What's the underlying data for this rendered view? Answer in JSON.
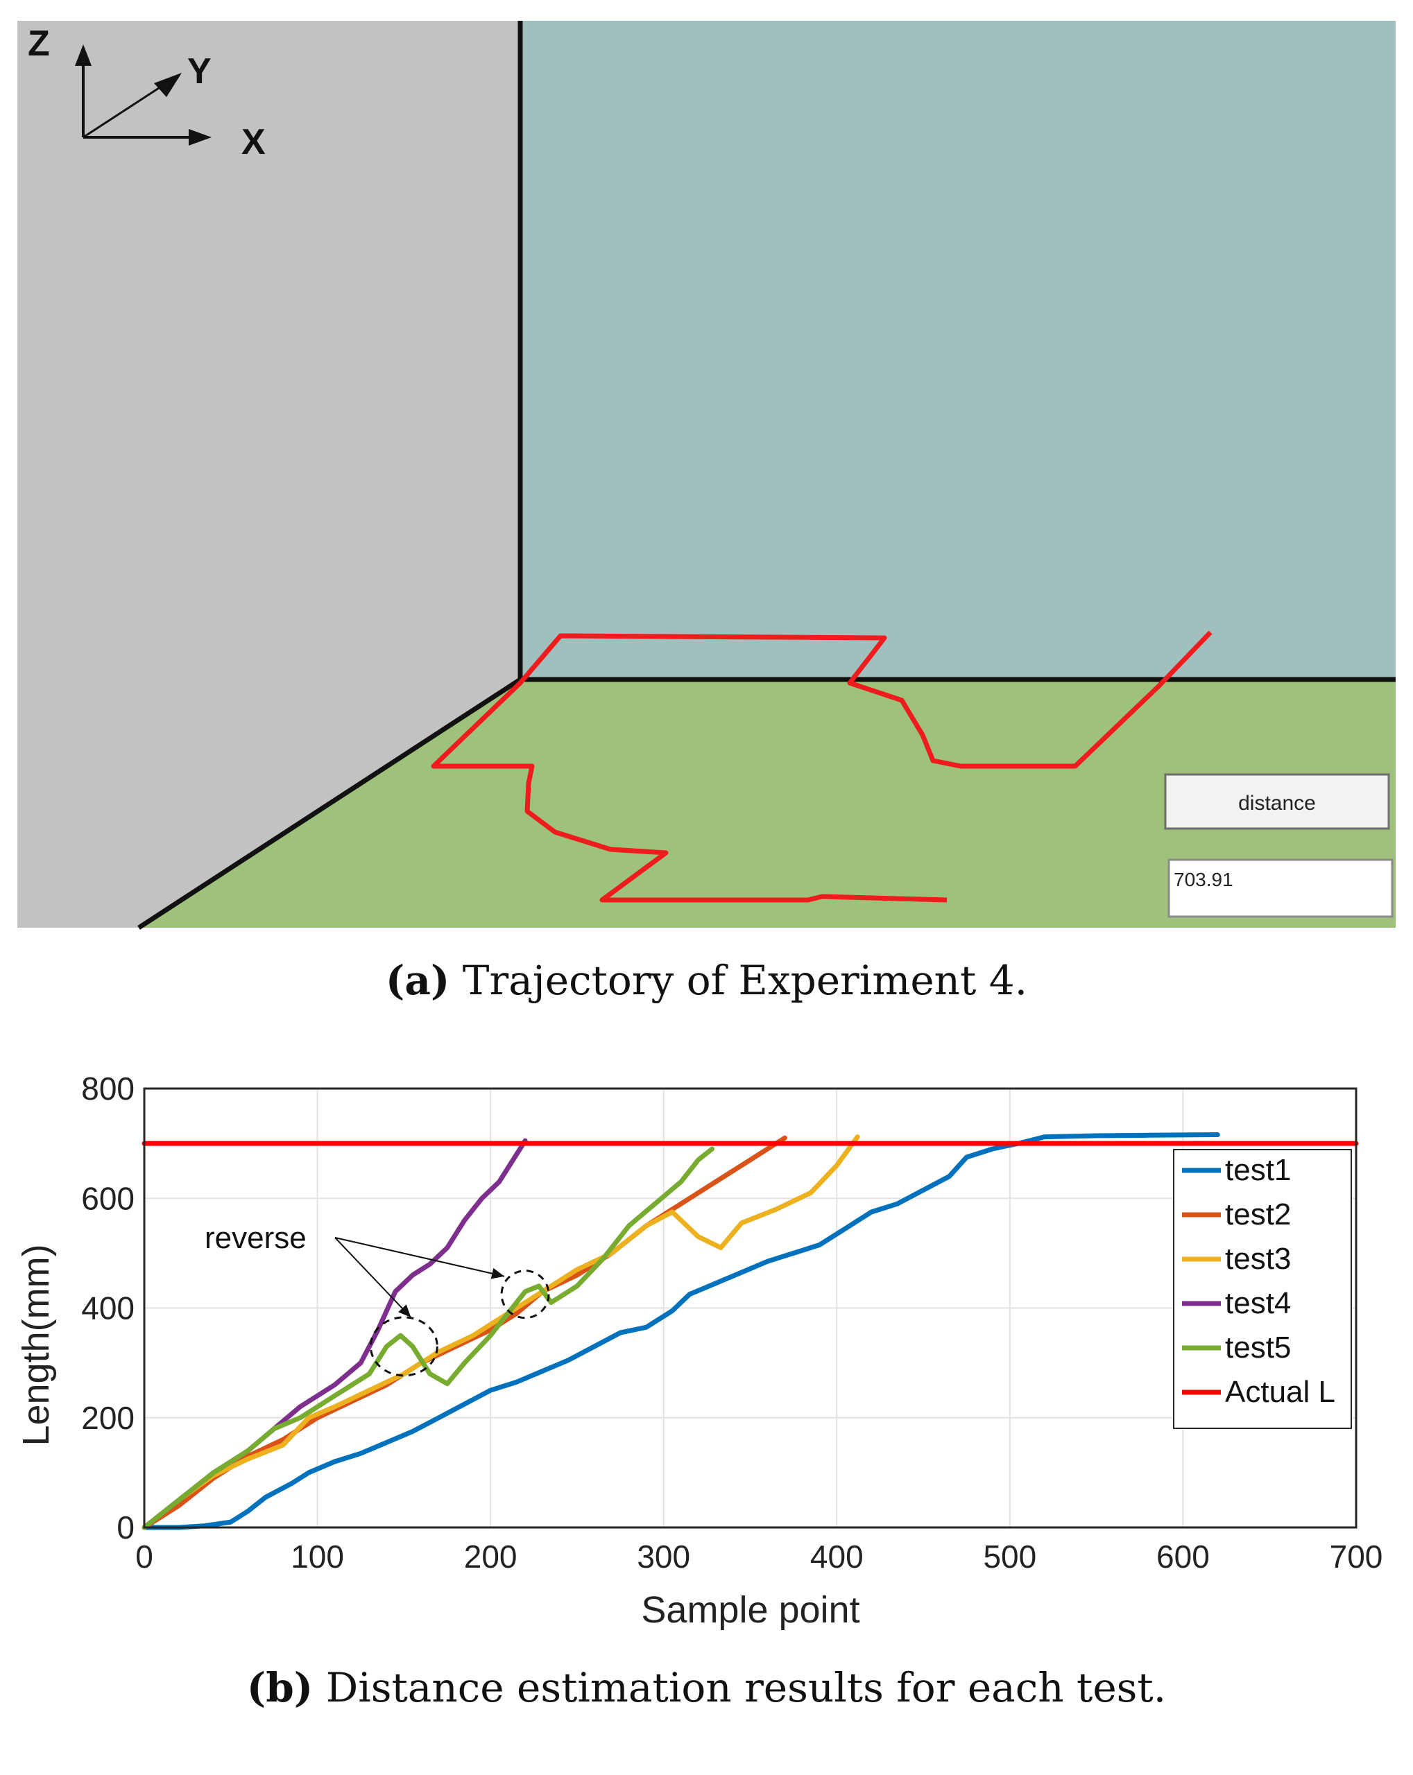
{
  "figure_a": {
    "axis_labels": {
      "z": "Z",
      "y": "Y",
      "x": "X"
    },
    "button_label": "distance",
    "distance_value": "703.91",
    "colors": {
      "left_wall": "#c2c2c2",
      "back_wall": "#a0bfbd",
      "floor": "#9ec27c",
      "trajectory": "#ee1c1c",
      "edges": "#111111"
    },
    "caption_tag": "(a)",
    "caption_text": "Trajectory of Experiment 4."
  },
  "figure_b": {
    "annotation": "reverse",
    "caption_tag": "(b)",
    "caption_text": "Distance estimation results for each test."
  },
  "chart_data": {
    "type": "line",
    "title": "",
    "xlabel": "Sample point",
    "ylabel": "Length(mm)",
    "xlim": [
      0,
      700
    ],
    "ylim": [
      0,
      800
    ],
    "xticks": [
      0,
      100,
      200,
      300,
      400,
      500,
      600,
      700
    ],
    "yticks": [
      0,
      200,
      400,
      600,
      800
    ],
    "grid": true,
    "legend_position": "right",
    "series": [
      {
        "name": "test1",
        "color": "#0072BD",
        "x": [
          0,
          20,
          35,
          50,
          60,
          70,
          85,
          95,
          110,
          125,
          140,
          155,
          170,
          185,
          200,
          215,
          230,
          245,
          260,
          275,
          290,
          305,
          315,
          330,
          345,
          360,
          375,
          390,
          405,
          420,
          435,
          450,
          465,
          475,
          490,
          505,
          520,
          550,
          580,
          620
        ],
        "y": [
          0,
          0,
          3,
          10,
          30,
          55,
          80,
          100,
          120,
          135,
          155,
          175,
          200,
          225,
          250,
          265,
          285,
          305,
          330,
          355,
          365,
          395,
          425,
          445,
          465,
          485,
          500,
          515,
          545,
          575,
          590,
          615,
          640,
          675,
          690,
          700,
          712,
          714,
          715,
          716
        ]
      },
      {
        "name": "test2",
        "color": "#D95319",
        "x": [
          0,
          20,
          40,
          60,
          80,
          100,
          120,
          140,
          160,
          180,
          200,
          215,
          230,
          250,
          270,
          290,
          310,
          330,
          350,
          370
        ],
        "y": [
          0,
          40,
          90,
          130,
          160,
          200,
          230,
          260,
          300,
          330,
          360,
          390,
          430,
          460,
          500,
          550,
          590,
          630,
          670,
          710
        ]
      },
      {
        "name": "test3",
        "color": "#EDB120",
        "x": [
          0,
          20,
          40,
          60,
          80,
          95,
          110,
          130,
          150,
          170,
          190,
          210,
          230,
          250,
          270,
          290,
          305,
          320,
          333,
          345,
          365,
          385,
          400,
          412
        ],
        "y": [
          0,
          50,
          95,
          125,
          150,
          200,
          220,
          250,
          280,
          320,
          350,
          390,
          430,
          470,
          500,
          550,
          575,
          530,
          510,
          555,
          580,
          610,
          660,
          712
        ]
      },
      {
        "name": "test4",
        "color": "#7E2F8E",
        "x": [
          0,
          20,
          40,
          60,
          75,
          90,
          110,
          125,
          135,
          145,
          155,
          165,
          175,
          185,
          195,
          205,
          215,
          220
        ],
        "y": [
          0,
          50,
          100,
          140,
          180,
          220,
          260,
          300,
          360,
          430,
          460,
          480,
          510,
          560,
          600,
          630,
          680,
          705
        ]
      },
      {
        "name": "test5",
        "color": "#77AC30",
        "x": [
          0,
          20,
          40,
          60,
          75,
          90,
          110,
          130,
          140,
          148,
          155,
          165,
          175,
          185,
          200,
          210,
          220,
          228,
          235,
          250,
          265,
          280,
          295,
          310,
          320,
          328
        ],
        "y": [
          0,
          50,
          100,
          140,
          180,
          200,
          240,
          280,
          330,
          350,
          330,
          280,
          262,
          300,
          350,
          390,
          430,
          440,
          410,
          440,
          490,
          550,
          590,
          630,
          670,
          690
        ]
      },
      {
        "name": "Actual L",
        "color": "#FF0000",
        "x": [
          0,
          700
        ],
        "y": [
          700,
          700
        ]
      }
    ]
  }
}
